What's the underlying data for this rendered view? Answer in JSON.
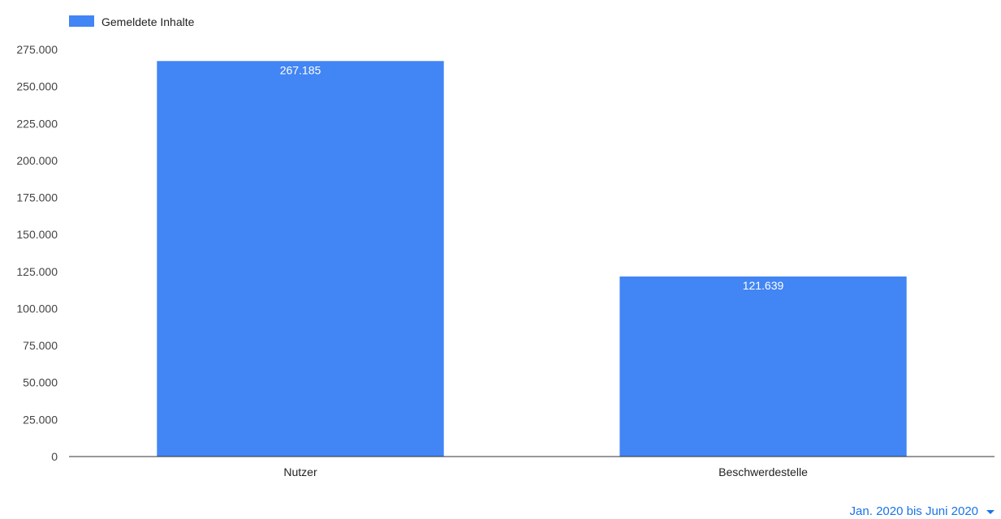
{
  "chart_data": {
    "type": "bar",
    "categories": [
      "Nutzer",
      "Beschwerdestelle"
    ],
    "series": [
      {
        "name": "Gemeldete Inhalte",
        "values": [
          267185,
          121639
        ],
        "value_labels": [
          "267.185",
          "121.639"
        ]
      }
    ],
    "ylim": [
      0,
      275000
    ],
    "yticks": [
      0,
      25000,
      50000,
      75000,
      100000,
      125000,
      150000,
      175000,
      200000,
      225000,
      250000,
      275000
    ],
    "ytick_labels": [
      "0",
      "25.000",
      "50.000",
      "75.000",
      "100.000",
      "125.000",
      "150.000",
      "175.000",
      "200.000",
      "225.000",
      "250.000",
      "275.000"
    ],
    "grid": false,
    "legend_position": "top-left",
    "colors": {
      "bar": "#4285f4"
    }
  },
  "period_selector": {
    "label": "Jan. 2020 bis Juni 2020",
    "icon": "caret-down-icon",
    "color": "#1a73e8"
  }
}
